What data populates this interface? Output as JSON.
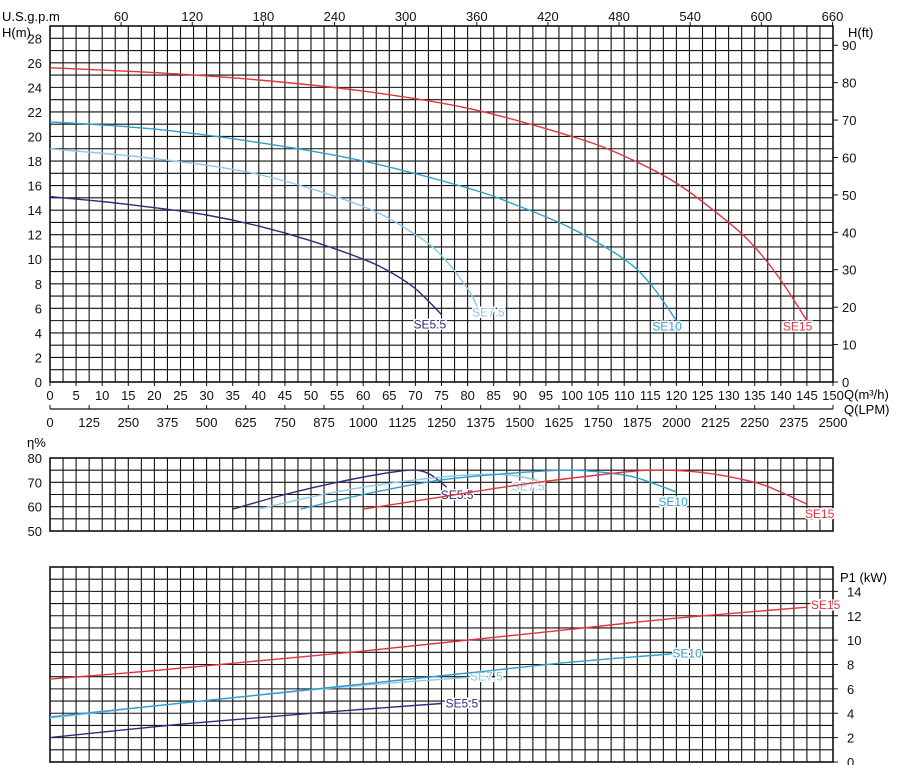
{
  "labels": {
    "usgpm": "U.S.g.p.m",
    "hm": "H(m)",
    "hft": "H(ft)",
    "q_m3h": "Q(m³/h)",
    "q_lpm": "Q(LPM)",
    "eta": "η%",
    "p1": "P1 (kW)"
  },
  "colors": {
    "grid": "#111111",
    "SE5.5": "#2f2a7a",
    "SE7.5": "#8cc8e8",
    "SE10": "#2f9ed0",
    "SE15": "#e23340"
  },
  "chart_data": [
    {
      "type": "line",
      "panel": "head",
      "x_axis": {
        "label": "Q(m³/h)",
        "range": [
          0,
          150
        ],
        "ticks": [
          "0",
          "5",
          "10",
          "15",
          "20",
          "25",
          "30",
          "35",
          "40",
          "45",
          "50",
          "55",
          "60",
          "65",
          "70",
          "75",
          "80",
          "85",
          "90",
          "95",
          "100",
          "105",
          "110",
          "115",
          "120",
          "125",
          "130",
          "135",
          "140",
          "145",
          "150"
        ]
      },
      "x_axis_lpm": {
        "label": "Q(LPM)",
        "ticks": [
          "0",
          "125",
          "250",
          "375",
          "500",
          "625",
          "750",
          "875",
          "1000",
          "1125",
          "1250",
          "1375",
          "1500",
          "1625",
          "1750",
          "1875",
          "2000",
          "2125",
          "2250",
          "2375",
          "2500"
        ]
      },
      "x_axis_top": {
        "label": "U.S.g.p.m",
        "ticks": [
          "60",
          "120",
          "180",
          "240",
          "300",
          "360",
          "420",
          "480",
          "540",
          "600",
          "660"
        ]
      },
      "y_axis": {
        "label": "H(m)",
        "range": [
          0,
          29
        ],
        "ticks": [
          "0",
          "2",
          "4",
          "6",
          "8",
          "10",
          "12",
          "14",
          "16",
          "18",
          "20",
          "22",
          "24",
          "26",
          "28"
        ]
      },
      "y_axis_right": {
        "label": "H(ft)",
        "ticks": [
          "0",
          "10",
          "20",
          "30",
          "40",
          "50",
          "60",
          "70",
          "80",
          "90"
        ]
      },
      "grid": true,
      "series": [
        {
          "name": "SE5.5",
          "x": [
            0,
            10,
            20,
            30,
            40,
            50,
            60,
            65,
            70,
            75
          ],
          "y": [
            15.1,
            14.7,
            14.2,
            13.6,
            12.7,
            11.5,
            10,
            9,
            7.6,
            5.5
          ]
        },
        {
          "name": "SE7.5",
          "x": [
            0,
            20,
            40,
            60,
            70,
            75,
            80,
            82
          ],
          "y": [
            19,
            18.2,
            16.9,
            14.3,
            12,
            10.3,
            7.6,
            6
          ]
        },
        {
          "name": "SE10",
          "x": [
            0,
            20,
            40,
            60,
            80,
            90,
            100,
            110,
            115,
            120
          ],
          "y": [
            21.2,
            20.6,
            19.5,
            18,
            15.8,
            14.3,
            12.5,
            10,
            8,
            5
          ]
        },
        {
          "name": "SE15",
          "x": [
            0,
            20,
            40,
            60,
            80,
            100,
            110,
            120,
            130,
            135,
            140,
            145
          ],
          "y": [
            25.6,
            25.2,
            24.6,
            23.7,
            22.3,
            20,
            18.4,
            16.2,
            13,
            11,
            8.3,
            5
          ]
        }
      ]
    },
    {
      "type": "line",
      "panel": "efficiency",
      "x_axis": {
        "range": [
          0,
          150
        ]
      },
      "y_axis": {
        "label": "η%",
        "range": [
          50,
          80
        ],
        "ticks": [
          "50",
          "60",
          "70",
          "80"
        ]
      },
      "grid": true,
      "series": [
        {
          "name": "SE5.5",
          "x": [
            35,
            45,
            55,
            65,
            70,
            73,
            76
          ],
          "y": [
            59,
            65,
            70,
            74,
            75,
            73,
            68
          ]
        },
        {
          "name": "SE7.5",
          "x": [
            40,
            50,
            60,
            70,
            80,
            88,
            95
          ],
          "y": [
            59,
            64,
            68,
            71,
            73,
            73,
            70
          ]
        },
        {
          "name": "SE10",
          "x": [
            48,
            60,
            75,
            90,
            100,
            110,
            115,
            120
          ],
          "y": [
            59,
            65,
            71,
            74,
            75,
            73,
            70,
            66
          ]
        },
        {
          "name": "SE15",
          "x": [
            60,
            75,
            90,
            105,
            115,
            125,
            135,
            140,
            145
          ],
          "y": [
            59,
            64,
            69,
            73,
            75,
            74,
            70,
            66,
            61
          ]
        }
      ]
    },
    {
      "type": "line",
      "panel": "power",
      "x_axis": {
        "range": [
          0,
          150
        ]
      },
      "y_axis": {
        "label": "P1 (kW)",
        "range": [
          0,
          16
        ],
        "ticks": [
          "0",
          "2",
          "4",
          "6",
          "8",
          "10",
          "12",
          "14"
        ]
      },
      "grid": true,
      "series": [
        {
          "name": "SE5.5",
          "x": [
            0,
            25,
            50,
            75
          ],
          "y": [
            2,
            3.1,
            4,
            4.8
          ]
        },
        {
          "name": "SE7.5",
          "x": [
            0,
            20,
            40,
            60,
            82
          ],
          "y": [
            3.6,
            4.6,
            5.5,
            6.3,
            7
          ]
        },
        {
          "name": "SE10",
          "x": [
            0,
            20,
            40,
            60,
            80,
            100,
            120
          ],
          "y": [
            3.7,
            4.6,
            5.5,
            6.4,
            7.3,
            8.2,
            8.9
          ]
        },
        {
          "name": "SE15",
          "x": [
            0,
            20,
            40,
            60,
            80,
            100,
            120,
            145
          ],
          "y": [
            6.8,
            7.5,
            8.3,
            9.1,
            10,
            10.9,
            11.8,
            12.7
          ]
        }
      ]
    }
  ]
}
